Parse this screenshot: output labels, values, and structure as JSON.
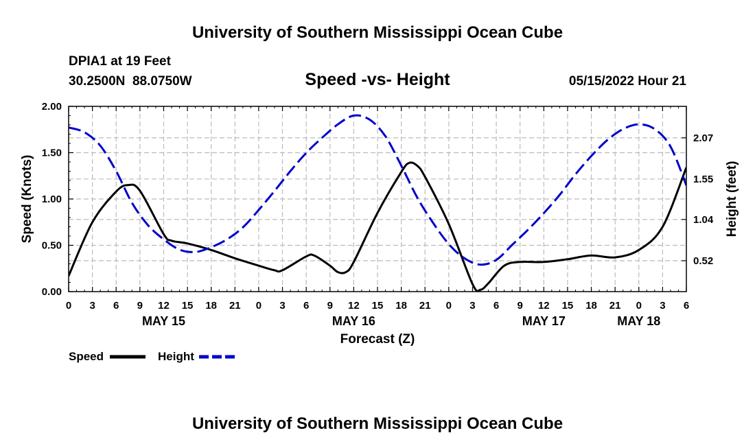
{
  "chart_data": {
    "type": "line",
    "title": "University of Southern Mississippi Ocean Cube",
    "subtitle": "Speed -vs- Height",
    "station": "DPIA1 at 19 Feet",
    "coordinates": "30.2500N  88.0750W",
    "datetime": "05/15/2022 Hour 21",
    "footer_title": "University of Southern Mississippi Ocean Cube",
    "xlabel": "Forecast (Z)",
    "ylabel_left": "Speed (Knots)",
    "ylabel_right": "Height (feet)",
    "x_unit": "hours since 2022-05-15 00Z",
    "xlim": [
      0,
      78
    ],
    "ylim_left": [
      0,
      2
    ],
    "ylim_right": [
      0.1303,
      2.4667
    ],
    "grid": true,
    "x_ticks": [
      {
        "x": 0,
        "label": "0"
      },
      {
        "x": 3,
        "label": "3"
      },
      {
        "x": 6,
        "label": "6"
      },
      {
        "x": 9,
        "label": "9"
      },
      {
        "x": 12,
        "label": "12"
      },
      {
        "x": 15,
        "label": "15"
      },
      {
        "x": 18,
        "label": "18"
      },
      {
        "x": 21,
        "label": "21"
      },
      {
        "x": 24,
        "label": "0"
      },
      {
        "x": 27,
        "label": "3"
      },
      {
        "x": 30,
        "label": "6"
      },
      {
        "x": 33,
        "label": "9"
      },
      {
        "x": 36,
        "label": "12"
      },
      {
        "x": 39,
        "label": "15"
      },
      {
        "x": 42,
        "label": "18"
      },
      {
        "x": 45,
        "label": "21"
      },
      {
        "x": 48,
        "label": "0"
      },
      {
        "x": 51,
        "label": "3"
      },
      {
        "x": 54,
        "label": "6"
      },
      {
        "x": 57,
        "label": "9"
      },
      {
        "x": 60,
        "label": "12"
      },
      {
        "x": 63,
        "label": "15"
      },
      {
        "x": 66,
        "label": "18"
      },
      {
        "x": 69,
        "label": "21"
      },
      {
        "x": 72,
        "label": "0"
      },
      {
        "x": 75,
        "label": "3"
      },
      {
        "x": 78,
        "label": "6"
      }
    ],
    "day_labels": [
      {
        "x": 12,
        "label": "MAY 15"
      },
      {
        "x": 36,
        "label": "MAY 16"
      },
      {
        "x": 60,
        "label": "MAY 17"
      },
      {
        "x": 72,
        "label": "MAY 18"
      }
    ],
    "y_ticks_left": [
      {
        "value": 0,
        "label": "0.00"
      },
      {
        "value": 0.5,
        "label": "0.50"
      },
      {
        "value": 1.0,
        "label": "1.00"
      },
      {
        "value": 1.5,
        "label": "1.50"
      },
      {
        "value": 2.0,
        "label": "2.00"
      }
    ],
    "y_ticks_right": [
      {
        "value": 0.52,
        "label": "0.52"
      },
      {
        "value": 1.04,
        "label": "1.04"
      },
      {
        "value": 1.55,
        "label": "1.55"
      },
      {
        "value": 2.07,
        "label": "2.07"
      }
    ],
    "series": [
      {
        "name": "Speed",
        "axis": "left",
        "color": "#000000",
        "dash": "solid",
        "points": [
          [
            0,
            0.17
          ],
          [
            3,
            0.75
          ],
          [
            6,
            1.08
          ],
          [
            7.5,
            1.15
          ],
          [
            9,
            1.09
          ],
          [
            12,
            0.62
          ],
          [
            13,
            0.55
          ],
          [
            15,
            0.52
          ],
          [
            18,
            0.45
          ],
          [
            21,
            0.36
          ],
          [
            24,
            0.28
          ],
          [
            26,
            0.23
          ],
          [
            27,
            0.23
          ],
          [
            30,
            0.38
          ],
          [
            31,
            0.39
          ],
          [
            33,
            0.28
          ],
          [
            34,
            0.21
          ],
          [
            35,
            0.21
          ],
          [
            36,
            0.32
          ],
          [
            39,
            0.85
          ],
          [
            42,
            1.29
          ],
          [
            43,
            1.39
          ],
          [
            44,
            1.36
          ],
          [
            45,
            1.24
          ],
          [
            48,
            0.73
          ],
          [
            51,
            0.08
          ],
          [
            52,
            0.02
          ],
          [
            53,
            0.09
          ],
          [
            55,
            0.28
          ],
          [
            57,
            0.32
          ],
          [
            60,
            0.32
          ],
          [
            63,
            0.35
          ],
          [
            66,
            0.39
          ],
          [
            69,
            0.37
          ],
          [
            72,
            0.45
          ],
          [
            75,
            0.7
          ],
          [
            78,
            1.34
          ]
        ]
      },
      {
        "name": "Height",
        "axis": "right",
        "color": "#0000cc",
        "dash": "dashed",
        "points": [
          [
            0,
            2.2
          ],
          [
            2,
            2.14
          ],
          [
            4,
            1.97
          ],
          [
            6,
            1.65
          ],
          [
            8,
            1.25
          ],
          [
            10,
            0.97
          ],
          [
            12,
            0.79
          ],
          [
            14,
            0.66
          ],
          [
            16,
            0.63
          ],
          [
            18,
            0.69
          ],
          [
            20,
            0.79
          ],
          [
            22,
            0.94
          ],
          [
            24,
            1.16
          ],
          [
            26,
            1.4
          ],
          [
            28,
            1.65
          ],
          [
            30,
            1.88
          ],
          [
            32,
            2.07
          ],
          [
            34,
            2.24
          ],
          [
            36,
            2.35
          ],
          [
            38,
            2.3
          ],
          [
            40,
            2.09
          ],
          [
            42,
            1.72
          ],
          [
            44,
            1.32
          ],
          [
            46,
            1.0
          ],
          [
            48,
            0.73
          ],
          [
            50,
            0.55
          ],
          [
            52,
            0.47
          ],
          [
            54,
            0.53
          ],
          [
            56,
            0.72
          ],
          [
            58,
            0.91
          ],
          [
            60,
            1.12
          ],
          [
            62,
            1.35
          ],
          [
            64,
            1.61
          ],
          [
            66,
            1.84
          ],
          [
            68,
            2.04
          ],
          [
            70,
            2.18
          ],
          [
            72,
            2.24
          ],
          [
            74,
            2.18
          ],
          [
            76,
            1.96
          ],
          [
            78,
            1.47
          ]
        ]
      }
    ],
    "legend": [
      {
        "label": "Speed",
        "color": "#000000",
        "dash": "solid"
      },
      {
        "label": "Height",
        "color": "#0000cc",
        "dash": "dashed"
      }
    ],
    "legend_position": "bottom-left"
  }
}
